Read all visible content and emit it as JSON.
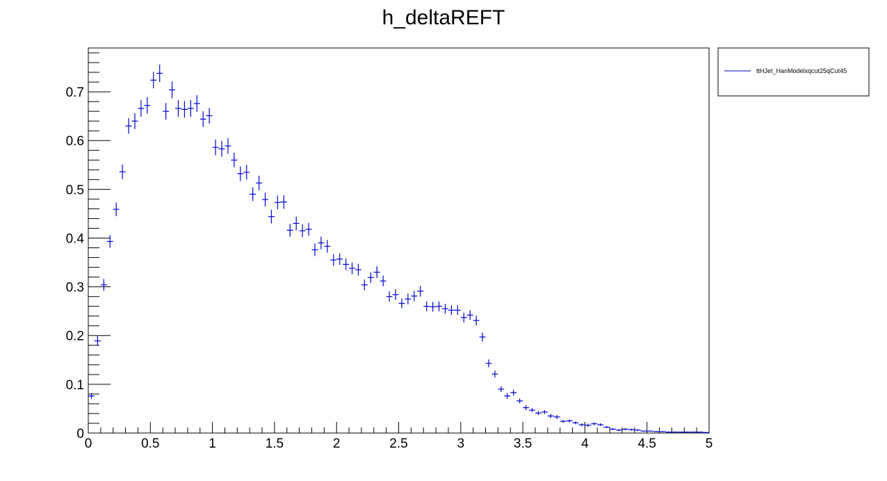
{
  "chart_data": {
    "type": "scatter",
    "title": "h_deltaREFT",
    "xlabel": "",
    "ylabel": "",
    "xlim": [
      0,
      5
    ],
    "ylim": [
      0,
      0.79
    ],
    "x_ticks": [
      {
        "value": 0,
        "label": "0"
      },
      {
        "value": 0.5,
        "label": "0.5"
      },
      {
        "value": 1,
        "label": "1"
      },
      {
        "value": 1.5,
        "label": "1.5"
      },
      {
        "value": 2,
        "label": "2"
      },
      {
        "value": 2.5,
        "label": "2.5"
      },
      {
        "value": 3,
        "label": "3"
      },
      {
        "value": 3.5,
        "label": "3.5"
      },
      {
        "value": 4,
        "label": "4"
      },
      {
        "value": 4.5,
        "label": "4.5"
      },
      {
        "value": 5,
        "label": "5"
      }
    ],
    "y_ticks": [
      {
        "value": 0,
        "label": "0"
      },
      {
        "value": 0.1,
        "label": "0.1"
      },
      {
        "value": 0.2,
        "label": "0.2"
      },
      {
        "value": 0.3,
        "label": "0.3"
      },
      {
        "value": 0.4,
        "label": "0.4"
      },
      {
        "value": 0.5,
        "label": "0.5"
      },
      {
        "value": 0.6,
        "label": "0.6"
      },
      {
        "value": 0.7,
        "label": "0.7"
      }
    ],
    "grid": false,
    "legend": {
      "position": "top-right",
      "entries": [
        "ttHJet_HanModelxqcut25qCut45"
      ]
    },
    "series": [
      {
        "name": "ttHJet_HanModelxqcut25qCut45",
        "color": "#0000cc",
        "bin_width": 0.05,
        "x": [
          0.025,
          0.075,
          0.125,
          0.175,
          0.225,
          0.275,
          0.325,
          0.375,
          0.425,
          0.475,
          0.525,
          0.575,
          0.625,
          0.675,
          0.725,
          0.775,
          0.825,
          0.875,
          0.925,
          0.975,
          1.025,
          1.075,
          1.125,
          1.175,
          1.225,
          1.275,
          1.325,
          1.375,
          1.425,
          1.475,
          1.525,
          1.575,
          1.625,
          1.675,
          1.725,
          1.775,
          1.825,
          1.875,
          1.925,
          1.975,
          2.025,
          2.075,
          2.125,
          2.175,
          2.225,
          2.275,
          2.325,
          2.375,
          2.425,
          2.475,
          2.525,
          2.575,
          2.625,
          2.675,
          2.725,
          2.775,
          2.825,
          2.875,
          2.925,
          2.975,
          3.025,
          3.075,
          3.125,
          3.175,
          3.225,
          3.275,
          3.325,
          3.375,
          3.425,
          3.475,
          3.525,
          3.575,
          3.625,
          3.675,
          3.725,
          3.775,
          3.825,
          3.875,
          3.925,
          3.975,
          4.025,
          4.075,
          4.125,
          4.175,
          4.225,
          4.275,
          4.325,
          4.375,
          4.425,
          4.475,
          4.525,
          4.575,
          4.625,
          4.675,
          4.725,
          4.775,
          4.825,
          4.875,
          4.925,
          4.975
        ],
        "y": [
          0.076,
          0.189,
          0.304,
          0.393,
          0.459,
          0.536,
          0.63,
          0.64,
          0.666,
          0.672,
          0.724,
          0.738,
          0.66,
          0.704,
          0.666,
          0.664,
          0.666,
          0.676,
          0.644,
          0.651,
          0.586,
          0.583,
          0.589,
          0.56,
          0.532,
          0.535,
          0.49,
          0.513,
          0.479,
          0.444,
          0.473,
          0.474,
          0.416,
          0.43,
          0.415,
          0.418,
          0.376,
          0.39,
          0.383,
          0.355,
          0.357,
          0.346,
          0.338,
          0.335,
          0.304,
          0.319,
          0.33,
          0.312,
          0.28,
          0.284,
          0.266,
          0.275,
          0.281,
          0.291,
          0.26,
          0.259,
          0.26,
          0.255,
          0.252,
          0.252,
          0.237,
          0.242,
          0.231,
          0.197,
          0.143,
          0.121,
          0.09,
          0.076,
          0.083,
          0.066,
          0.052,
          0.047,
          0.041,
          0.043,
          0.035,
          0.033,
          0.024,
          0.025,
          0.021,
          0.017,
          0.016,
          0.019,
          0.017,
          0.012,
          0.008,
          0.006,
          0.008,
          0.007,
          0.006,
          0.004,
          0.004,
          0.003,
          0.003,
          0.002,
          0.002,
          0.002,
          0.002,
          0.002,
          0.002,
          0.001
        ],
        "err": [
          0.006,
          0.01,
          0.012,
          0.013,
          0.014,
          0.015,
          0.016,
          0.016,
          0.017,
          0.017,
          0.017,
          0.018,
          0.017,
          0.017,
          0.017,
          0.017,
          0.017,
          0.017,
          0.016,
          0.016,
          0.016,
          0.016,
          0.016,
          0.015,
          0.015,
          0.015,
          0.014,
          0.015,
          0.014,
          0.014,
          0.014,
          0.014,
          0.013,
          0.014,
          0.013,
          0.013,
          0.013,
          0.013,
          0.013,
          0.012,
          0.012,
          0.012,
          0.012,
          0.012,
          0.011,
          0.011,
          0.012,
          0.011,
          0.011,
          0.011,
          0.01,
          0.011,
          0.011,
          0.011,
          0.01,
          0.01,
          0.01,
          0.01,
          0.01,
          0.01,
          0.01,
          0.01,
          0.01,
          0.009,
          0.008,
          0.007,
          0.006,
          0.006,
          0.006,
          0.005,
          0.005,
          0.004,
          0.004,
          0.004,
          0.004,
          0.004,
          0.003,
          0.003,
          0.003,
          0.003,
          0.003,
          0.003,
          0.003,
          0.002,
          0.002,
          0.002,
          0.002,
          0.002,
          0.002,
          0.001,
          0.001,
          0.001,
          0.001,
          0.001,
          0.001,
          0.001,
          0.001,
          0.001,
          0.001,
          0.001
        ]
      }
    ]
  }
}
